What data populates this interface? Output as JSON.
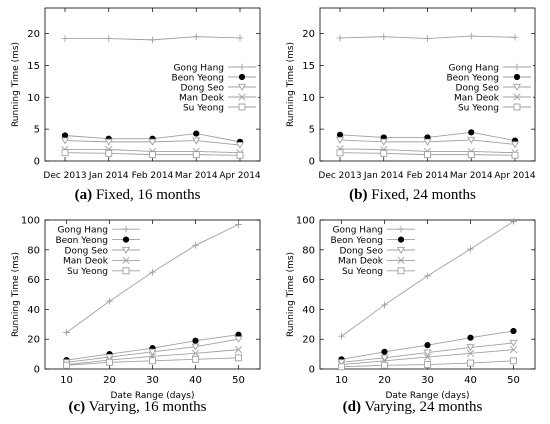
{
  "marker_color": "#000000",
  "panels": [
    {
      "caption_label": "(a)",
      "caption_text": "Fixed, 16 months"
    },
    {
      "caption_label": "(b)",
      "caption_text": "Fixed, 24 months"
    },
    {
      "caption_label": "(c)",
      "caption_text": "Varying, 16 months"
    },
    {
      "caption_label": "(d)",
      "caption_text": "Varying, 24 months"
    }
  ],
  "chart_data": [
    {
      "type": "line",
      "title": "",
      "xlabel": "",
      "ylabel": "Running Time (ms)",
      "categories": [
        "Dec 2013",
        "Jan 2014",
        "Feb 2014",
        "Mar 2014",
        "Apr 2014"
      ],
      "ylim": [
        0,
        24
      ],
      "yticks": [
        0,
        5,
        10,
        15,
        20
      ],
      "grid": false,
      "legend_position": "right",
      "series": [
        {
          "name": "Gong Hang",
          "marker": "plus",
          "values": [
            19.2,
            19.2,
            19.0,
            19.5,
            19.3
          ]
        },
        {
          "name": "Beon Yeong",
          "marker": "dot",
          "values": [
            4.0,
            3.5,
            3.5,
            4.3,
            3.0
          ]
        },
        {
          "name": "Dong Seo",
          "marker": "triangle",
          "values": [
            3.2,
            3.0,
            3.0,
            3.2,
            2.5
          ]
        },
        {
          "name": "Man Deok",
          "marker": "x",
          "values": [
            1.8,
            1.8,
            1.5,
            1.5,
            1.3
          ]
        },
        {
          "name": "Su Yeong",
          "marker": "square",
          "values": [
            1.3,
            1.2,
            1.0,
            1.0,
            0.9
          ]
        }
      ]
    },
    {
      "type": "line",
      "title": "",
      "xlabel": "",
      "ylabel": "Running Time (ms)",
      "categories": [
        "Dec 2013",
        "Jan 2014",
        "Feb 2014",
        "Mar 2014",
        "Apr 2014"
      ],
      "ylim": [
        0,
        24
      ],
      "yticks": [
        0,
        5,
        10,
        15,
        20
      ],
      "grid": false,
      "legend_position": "right",
      "series": [
        {
          "name": "Gong Hang",
          "marker": "plus",
          "values": [
            19.3,
            19.5,
            19.2,
            19.6,
            19.4
          ]
        },
        {
          "name": "Beon Yeong",
          "marker": "dot",
          "values": [
            4.1,
            3.7,
            3.7,
            4.5,
            3.2
          ]
        },
        {
          "name": "Dong Seo",
          "marker": "triangle",
          "values": [
            3.3,
            3.0,
            3.0,
            3.3,
            2.6
          ]
        },
        {
          "name": "Man Deok",
          "marker": "x",
          "values": [
            1.9,
            1.8,
            1.5,
            1.5,
            1.3
          ]
        },
        {
          "name": "Su Yeong",
          "marker": "square",
          "values": [
            1.3,
            1.2,
            1.0,
            1.0,
            0.9
          ]
        }
      ]
    },
    {
      "type": "line",
      "title": "",
      "xlabel": "Date Range (days)",
      "ylabel": "Running Time (ms)",
      "x": [
        10,
        20,
        30,
        40,
        50
      ],
      "xlim": [
        5,
        55
      ],
      "ylim": [
        0,
        100
      ],
      "yticks": [
        0,
        20,
        40,
        60,
        80,
        100
      ],
      "grid": false,
      "legend_position": "top-left",
      "series": [
        {
          "name": "Gong Hang",
          "marker": "plus",
          "values": [
            24.5,
            45.5,
            65.0,
            83.0,
            97.0
          ]
        },
        {
          "name": "Beon Yeong",
          "marker": "dot",
          "values": [
            6.0,
            10.0,
            14.0,
            19.0,
            23.0
          ]
        },
        {
          "name": "Dong Seo",
          "marker": "triangle",
          "values": [
            4.5,
            8.0,
            11.5,
            15.0,
            20.0
          ]
        },
        {
          "name": "Man Deok",
          "marker": "x",
          "values": [
            3.0,
            6.0,
            8.5,
            10.5,
            13.0
          ]
        },
        {
          "name": "Su Yeong",
          "marker": "square",
          "values": [
            2.5,
            4.5,
            5.5,
            6.5,
            7.5
          ]
        }
      ]
    },
    {
      "type": "line",
      "title": "",
      "xlabel": "Date Range (days)",
      "ylabel": "Running Time (ms)",
      "x": [
        10,
        20,
        30,
        40,
        50
      ],
      "xlim": [
        5,
        55
      ],
      "ylim": [
        0,
        100
      ],
      "yticks": [
        0,
        20,
        40,
        60,
        80,
        100
      ],
      "grid": false,
      "legend_position": "top-left",
      "series": [
        {
          "name": "Gong Hang",
          "marker": "plus",
          "values": [
            22.0,
            43.0,
            62.5,
            80.5,
            99.0
          ]
        },
        {
          "name": "Beon Yeong",
          "marker": "dot",
          "values": [
            6.5,
            11.5,
            16.0,
            21.0,
            25.5
          ]
        },
        {
          "name": "Dong Seo",
          "marker": "triangle",
          "values": [
            4.5,
            7.5,
            11.0,
            14.5,
            17.5
          ]
        },
        {
          "name": "Man Deok",
          "marker": "x",
          "values": [
            3.0,
            5.5,
            8.0,
            10.5,
            13.0
          ]
        },
        {
          "name": "Su Yeong",
          "marker": "square",
          "values": [
            1.5,
            2.5,
            3.0,
            4.0,
            5.5
          ]
        }
      ]
    }
  ]
}
